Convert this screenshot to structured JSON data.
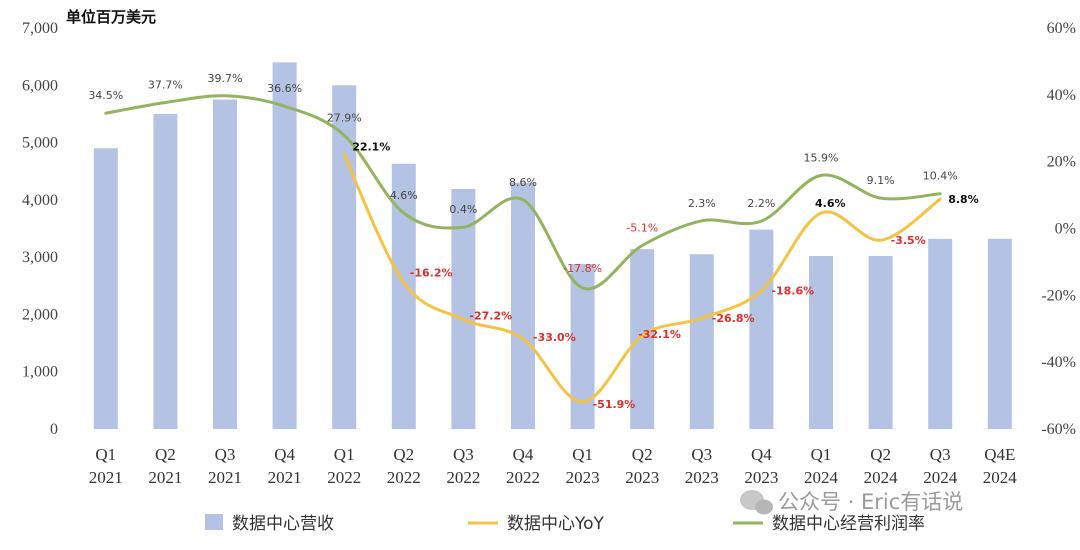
{
  "chart_data": {
    "type": "bar",
    "unit_label": "单位百万美元",
    "categories": [
      [
        "Q1",
        "2021"
      ],
      [
        "Q2",
        "2021"
      ],
      [
        "Q3",
        "2021"
      ],
      [
        "Q4",
        "2021"
      ],
      [
        "Q1",
        "2022"
      ],
      [
        "Q2",
        "2022"
      ],
      [
        "Q3",
        "2022"
      ],
      [
        "Q4",
        "2022"
      ],
      [
        "Q1",
        "2023"
      ],
      [
        "Q2",
        "2023"
      ],
      [
        "Q3",
        "2023"
      ],
      [
        "Q4",
        "2023"
      ],
      [
        "Q1",
        "2024"
      ],
      [
        "Q2",
        "2024"
      ],
      [
        "Q3",
        "2024"
      ],
      [
        "Q4E",
        "2024"
      ]
    ],
    "ylim": [
      0,
      7000
    ],
    "y_ticks": [
      "0",
      "1,000",
      "2,000",
      "3,000",
      "4,000",
      "5,000",
      "6,000",
      "7,000"
    ],
    "y2lim": [
      -60,
      60
    ],
    "y2_ticks": [
      "-60%",
      "-40%",
      "-20%",
      "0%",
      "20%",
      "40%",
      "60%"
    ],
    "series": [
      {
        "name": "数据中心营收",
        "type": "bar",
        "axis": "left",
        "color": "#b4c3e3",
        "values": [
          4900,
          5500,
          5750,
          6400,
          6000,
          4630,
          4190,
          4300,
          2880,
          3140,
          3050,
          3480,
          3020,
          3020,
          3320,
          3320
        ]
      },
      {
        "name": "数据中心YoY",
        "type": "line",
        "axis": "right",
        "color": "#f4c343",
        "label_color": "#e02d2d",
        "values": [
          null,
          null,
          null,
          null,
          22.1,
          -16.2,
          -27.2,
          -33.0,
          -51.9,
          -32.1,
          -26.8,
          -18.6,
          4.6,
          -3.5,
          8.8,
          null
        ],
        "labels": [
          null,
          null,
          null,
          null,
          "22.1%",
          "-16.2%",
          "-27.2%",
          "-33.0%",
          "-51.9%",
          "-32.1%",
          "-26.8%",
          "-18.6%",
          "4.6%",
          "-3.5%",
          "8.8%",
          null
        ]
      },
      {
        "name": "数据中心经营利润率",
        "type": "line",
        "axis": "right",
        "color": "#93b35e",
        "label_color": "#444444",
        "values": [
          34.5,
          37.7,
          39.7,
          36.6,
          27.9,
          4.6,
          0.4,
          8.6,
          -17.8,
          -5.1,
          2.3,
          2.2,
          15.9,
          9.1,
          10.4,
          null
        ],
        "labels": [
          "34.5%",
          "37.7%",
          "39.7%",
          "36.6%",
          "27.9%",
          "4.6%",
          "0.4%",
          "8.6%",
          "-17.8%",
          "-5.1%",
          "2.3%",
          "2.2%",
          "15.9%",
          "9.1%",
          "10.4%",
          null
        ]
      }
    ],
    "legend": [
      "数据中心营收",
      "数据中心YoY",
      "数据中心经营利润率"
    ],
    "legend_position": "bottom"
  },
  "watermark": "公众号 · Eric有话说"
}
